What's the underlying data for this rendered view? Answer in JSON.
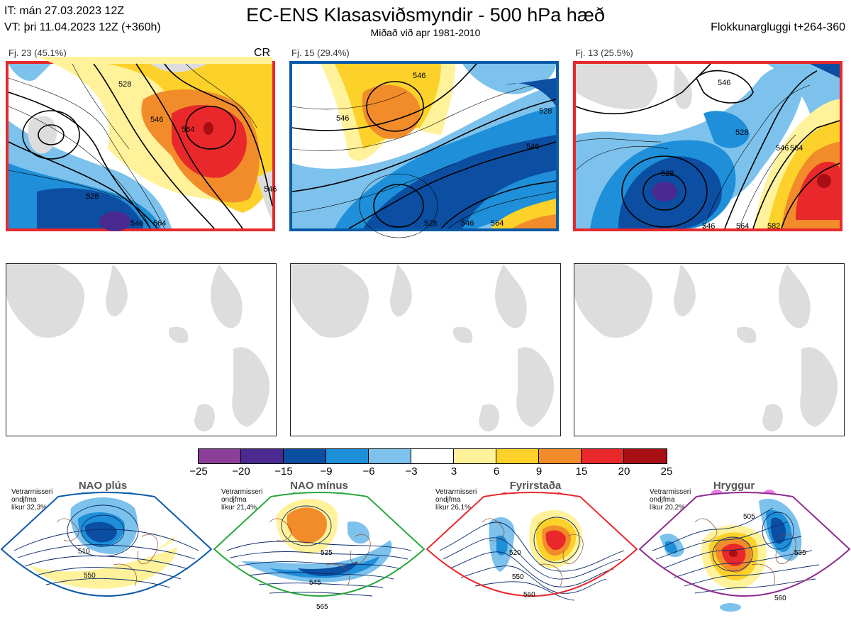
{
  "header": {
    "init_time": "IT: mán 27.03.2023 12Z",
    "valid_time": "VT: þri 11.04.2023 12Z  (+360h)",
    "title": "EC-ENS Klasasviðsmyndir - 500 hPa hæð",
    "subtitle": "Miðað við apr 1981-2010",
    "window": "Flokkunargluggi t+264-360"
  },
  "clusters": [
    {
      "label": "Fj. 23 (45.1%)",
      "tag": "CR",
      "border_color": "#e8292c",
      "contours": [
        "528",
        "546",
        "564",
        "528",
        "546",
        "564",
        "546"
      ]
    },
    {
      "label": "Fj. 15 (29.4%)",
      "tag": "",
      "border_color": "#0a5aa8",
      "contours": [
        "546",
        "546",
        "528",
        "546",
        "528",
        "546",
        "564"
      ]
    },
    {
      "label": "Fj. 13 (25.5%)",
      "tag": "",
      "border_color": "#e8292c",
      "contours": [
        "546",
        "528",
        "546",
        "564",
        "528",
        "546",
        "564",
        "582"
      ]
    }
  ],
  "colorbar": {
    "ticks": [
      "−25",
      "−20",
      "−15",
      "−9",
      "−6",
      "−3",
      "3",
      "6",
      "9",
      "15",
      "20",
      "25"
    ],
    "colors": [
      "#8c3f99",
      "#4a2990",
      "#0b4ea2",
      "#1e8fd8",
      "#7cc2ec",
      "#ffffff",
      "#fff29a",
      "#fcd12a",
      "#f28c2b",
      "#e8282b",
      "#a80f14"
    ]
  },
  "regimes": [
    {
      "name": "NAO plús",
      "winter_label": "Vetrarmisseri",
      "freq_label": "ondjfma",
      "prob": "líkur 32,3%",
      "color": "#0a5aa8",
      "dot_color": "#0a5aa8",
      "contours": [
        "510",
        "550"
      ]
    },
    {
      "name": "NAO mínus",
      "winter_label": "Vetrarmisseri",
      "freq_label": "ondjfma",
      "prob": "líkur 21,4%",
      "color": "#2aa83c",
      "dot_color": "#2aa83c",
      "contours": [
        "525",
        "545",
        "565"
      ]
    },
    {
      "name": "Fyrirstaða",
      "winter_label": "Vetrarmisseri",
      "freq_label": "ondjfma",
      "prob": "líkur 26,1%",
      "color": "#e8292c",
      "dot_color": "#e8292c",
      "contours": [
        "520",
        "550",
        "560"
      ]
    },
    {
      "name": "Hryggur",
      "winter_label": "Vetrarmisseri",
      "freq_label": "ondjfma",
      "prob": "líkur 20,2%",
      "color": "#8e2a8e",
      "dot_color": "#e87ce8",
      "contours": [
        "505",
        "535",
        "560"
      ]
    }
  ]
}
